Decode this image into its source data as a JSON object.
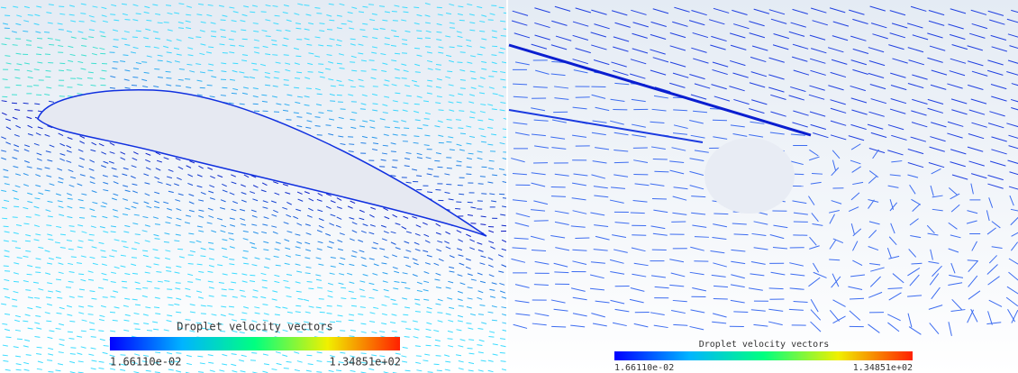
{
  "panels": [
    {
      "legend": {
        "title": "Droplet velocity vectors",
        "min_label": "1.66110e-02",
        "max_label": "1.34851e+02"
      }
    },
    {
      "legend": {
        "title": "Droplet velocity vectors",
        "min_label": "1.66110e-02",
        "max_label": "1.34851e+02"
      }
    }
  ]
}
